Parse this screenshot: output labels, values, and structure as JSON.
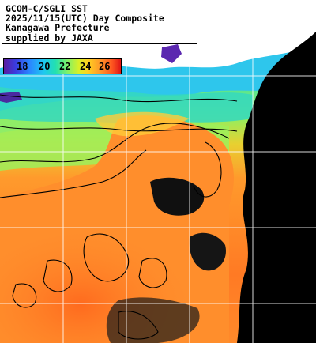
{
  "title": {
    "lines": [
      "GCOM-C/SGLI SST",
      "2025/11/15(UTC) Day Composite",
      "Kanagawa Prefecture",
      "supplied by JAXA"
    ]
  },
  "colorbar": {
    "ticks": [
      "18",
      "20",
      "22",
      "24",
      "26"
    ],
    "unit": ""
  },
  "colors": {
    "land": "#000000",
    "cloud": "#ffffff",
    "sst_cool": "#2a86ff",
    "sst_mid": "#7ef06a",
    "sst_warm": "#ff8a2a",
    "sst_hot": "#ff5a20",
    "grid": "#ffffff"
  }
}
